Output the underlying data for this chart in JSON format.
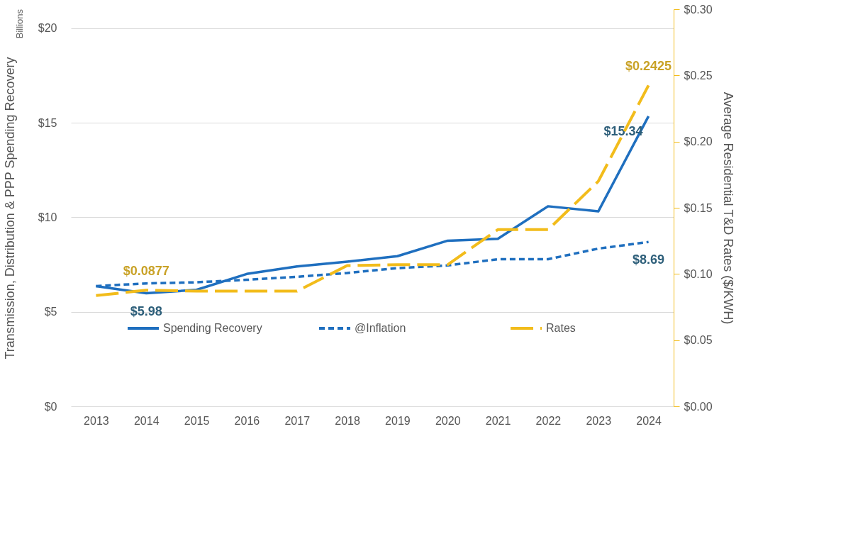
{
  "chart_data": {
    "type": "line",
    "ylabel": "Transmission, Distribution & PPP Spending Recovery",
    "y2label": "Average Residential T&D Rates ($/KWH)",
    "annotations": [
      "Billions"
    ],
    "categories": [
      "2013",
      "2014",
      "2015",
      "2016",
      "2017",
      "2018",
      "2019",
      "2020",
      "2021",
      "2022",
      "2023",
      "2024"
    ],
    "series": [
      {
        "name": "Spending Recovery",
        "color": "#1f6fbf",
        "line_style": "solid",
        "values": [
          6.36,
          5.98,
          6.16,
          7.0,
          7.4,
          7.65,
          7.94,
          8.76,
          8.86,
          10.58,
          10.31,
          15.34
        ],
        "value_labels": [
          null,
          "$5.98",
          null,
          null,
          null,
          null,
          null,
          null,
          null,
          null,
          null,
          "$15.34"
        ]
      },
      {
        "name": "@Inflation",
        "color": "#1f6fbf",
        "line_style": "dashed",
        "values": [
          6.36,
          6.5,
          6.56,
          6.69,
          6.85,
          7.05,
          7.31,
          7.45,
          7.78,
          7.78,
          8.34,
          8.69
        ],
        "value_labels": [
          null,
          null,
          null,
          null,
          null,
          null,
          null,
          null,
          null,
          null,
          null,
          "$8.69"
        ]
      },
      {
        "name": "Rates",
        "color": "#f2bc1b",
        "line_style": "dashed",
        "axis": "y2",
        "values": [
          0.0837,
          0.0877,
          0.087,
          0.087,
          0.087,
          0.1063,
          0.107,
          0.107,
          0.1335,
          0.1335,
          0.17,
          0.2425
        ],
        "value_labels": [
          null,
          "$0.0877",
          null,
          null,
          null,
          null,
          null,
          null,
          null,
          null,
          null,
          "$0.2425"
        ]
      }
    ],
    "ylim": [
      0,
      21
    ],
    "yticks": [
      {
        "value": 0,
        "label": "$0"
      },
      {
        "value": 5,
        "label": "$5"
      },
      {
        "value": 10,
        "label": "$10"
      },
      {
        "value": 15,
        "label": "$15"
      },
      {
        "value": 20,
        "label": "$20"
      }
    ],
    "y2lim": [
      0,
      0.3
    ],
    "y2ticks": [
      {
        "value": 0,
        "label": "$0.00"
      },
      {
        "value": 0.05,
        "label": "$0.05"
      },
      {
        "value": 0.1,
        "label": "$0.10"
      },
      {
        "value": 0.15,
        "label": "$0.15"
      },
      {
        "value": 0.2,
        "label": "$0.20"
      },
      {
        "value": 0.25,
        "label": "$0.25"
      },
      {
        "value": 0.3,
        "label": "$0.30"
      }
    ],
    "grid": "y",
    "legend": "bottom"
  }
}
